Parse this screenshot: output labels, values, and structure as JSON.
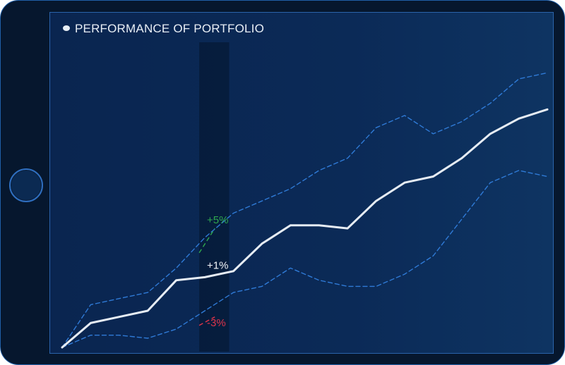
{
  "chart_data": {
    "type": "line",
    "title": "PERFORMANCE OF PORTFOLIO",
    "xlabel": "",
    "ylabel": "",
    "x": [
      0,
      1,
      2,
      3,
      4,
      5,
      6,
      7,
      8,
      9,
      10,
      11,
      12,
      13,
      14,
      15,
      16,
      17
    ],
    "ylim": [
      0,
      100
    ],
    "series": [
      {
        "role": "main",
        "style": "solid",
        "color": "#e6ecf3",
        "values": [
          0,
          8,
          10,
          12,
          22,
          23,
          25,
          34,
          40,
          40,
          39,
          48,
          54,
          56,
          62,
          70,
          75,
          78
        ]
      },
      {
        "role": "upper",
        "style": "dashed",
        "color": "#2f7ad6",
        "values": [
          0,
          14,
          16,
          18,
          26,
          36,
          44,
          48,
          52,
          58,
          62,
          72,
          76,
          70,
          74,
          80,
          88,
          90
        ]
      },
      {
        "role": "lower",
        "style": "dashed",
        "color": "#2f7ad6",
        "values": [
          0,
          4,
          4,
          3,
          6,
          12,
          18,
          20,
          26,
          22,
          20,
          20,
          24,
          30,
          42,
          54,
          58,
          56
        ]
      }
    ],
    "highlight": {
      "x_index": 5
    },
    "annotations": [
      {
        "text": "+5%",
        "color": "#2fa84f",
        "target": "upper"
      },
      {
        "text": "+1%",
        "color": "#f2f5f9",
        "target": "main"
      },
      {
        "text": "-3%",
        "color": "#e0354b",
        "target": "lower"
      }
    ],
    "grid": false,
    "legend": "none"
  }
}
